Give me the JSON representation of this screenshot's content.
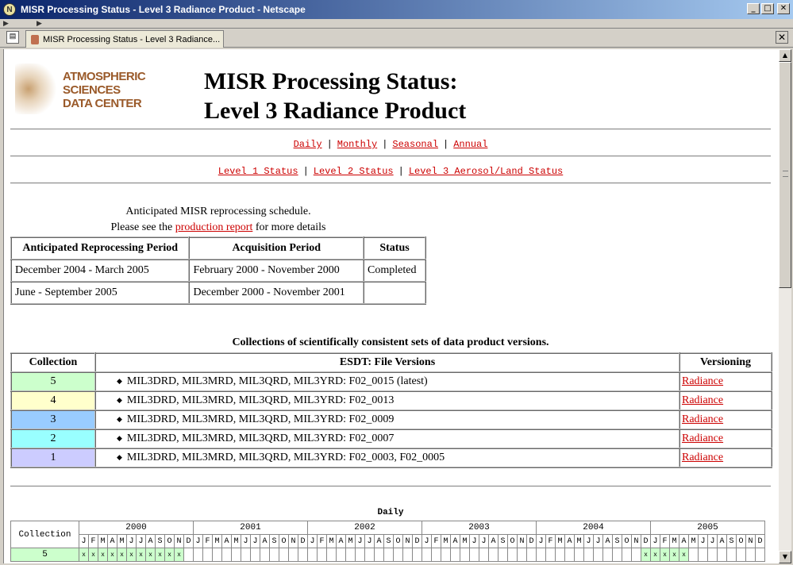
{
  "window": {
    "title": "MISR Processing Status - Level 3 Radiance Product - Netscape",
    "tab_label": "MISR Processing Status - Level 3 Radiance..."
  },
  "header": {
    "logo_lines": [
      "ATMOSPHERIC",
      "SCIENCES",
      "DATA CENTER"
    ],
    "title_line1": "MISR Processing Status:",
    "title_line2": "Level 3 Radiance Product"
  },
  "nav1": [
    "Daily",
    "Monthly",
    "Seasonal",
    "Annual"
  ],
  "nav2": [
    "Level 1 Status",
    "Level 2 Status",
    "Level 3 Aerosol/Land Status"
  ],
  "schedule": {
    "caption1": "Anticipated MISR reprocessing schedule.",
    "caption2_before": "Please see the",
    "caption2_link": "production report",
    "caption2_after": "for more details",
    "headers": [
      "Anticipated Reprocessing Period",
      "Acquisition Period",
      "Status"
    ],
    "rows": [
      [
        "December 2004 - March 2005",
        "February 2000 - November 2000",
        "Completed"
      ],
      [
        "June - September 2005",
        "December 2000 - November 2001",
        ""
      ]
    ]
  },
  "collections": {
    "caption": "Collections of scientifically consistent sets of data product versions.",
    "headers": [
      "Collection",
      "ESDT: File Versions",
      "Versioning"
    ],
    "rows": [
      {
        "num": "5",
        "files": "MIL3DRD, MIL3MRD, MIL3QRD, MIL3YRD: F02_0015 (latest)",
        "link": "Radiance",
        "color": "#ccffcc"
      },
      {
        "num": "4",
        "files": "MIL3DRD, MIL3MRD, MIL3QRD, MIL3YRD: F02_0013",
        "link": "Radiance",
        "color": "#ffffcc"
      },
      {
        "num": "3",
        "files": "MIL3DRD, MIL3MRD, MIL3QRD, MIL3YRD: F02_0009",
        "link": "Radiance",
        "color": "#99ccff"
      },
      {
        "num": "2",
        "files": "MIL3DRD, MIL3MRD, MIL3QRD, MIL3YRD: F02_0007",
        "link": "Radiance",
        "color": "#99ffff"
      },
      {
        "num": "1",
        "files": "MIL3DRD, MIL3MRD, MIL3QRD, MIL3YRD: F02_0003, F02_0005",
        "link": "Radiance",
        "color": "#ccccff"
      }
    ]
  },
  "daily": {
    "title": "Daily",
    "collection_label": "Collection",
    "years": [
      "2000",
      "2001",
      "2002",
      "2003",
      "2004",
      "2005"
    ],
    "months": [
      "J",
      "F",
      "M",
      "A",
      "M",
      "J",
      "J",
      "A",
      "S",
      "O",
      "N",
      "D"
    ],
    "partial_row_label": "5",
    "mark": "x"
  }
}
